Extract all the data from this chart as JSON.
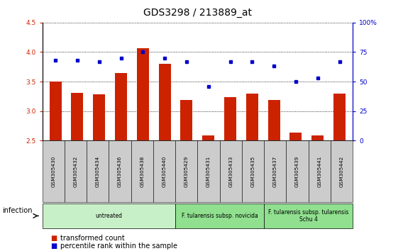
{
  "title": "GDS3298 / 213889_at",
  "samples": [
    "GSM305430",
    "GSM305432",
    "GSM305434",
    "GSM305436",
    "GSM305438",
    "GSM305440",
    "GSM305429",
    "GSM305431",
    "GSM305433",
    "GSM305435",
    "GSM305437",
    "GSM305439",
    "GSM305441",
    "GSM305442"
  ],
  "red_values": [
    3.5,
    3.31,
    3.29,
    3.64,
    4.07,
    3.8,
    3.19,
    2.59,
    3.24,
    3.3,
    3.19,
    2.64,
    2.59,
    3.3
  ],
  "blue_values": [
    68,
    68,
    67,
    70,
    75,
    70,
    67,
    46,
    67,
    67,
    63,
    50,
    53,
    67
  ],
  "ylim_left": [
    2.5,
    4.5
  ],
  "ylim_right": [
    0,
    100
  ],
  "yticks_left": [
    2.5,
    3.0,
    3.5,
    4.0,
    4.5
  ],
  "yticks_right": [
    0,
    25,
    50,
    75,
    100
  ],
  "groups": [
    {
      "label": "untreated",
      "start": 0,
      "end": 6,
      "color": "#c8f0c8"
    },
    {
      "label": "F. tularensis subsp. novicida",
      "start": 6,
      "end": 10,
      "color": "#90e090"
    },
    {
      "label": "F. tularensis subsp. tularensis\nSchu 4",
      "start": 10,
      "end": 14,
      "color": "#90e090"
    }
  ],
  "infection_label": "infection",
  "legend_red": "transformed count",
  "legend_blue": "percentile rank within the sample",
  "red_color": "#cc2200",
  "blue_color": "#0000cc",
  "bar_width": 0.55
}
